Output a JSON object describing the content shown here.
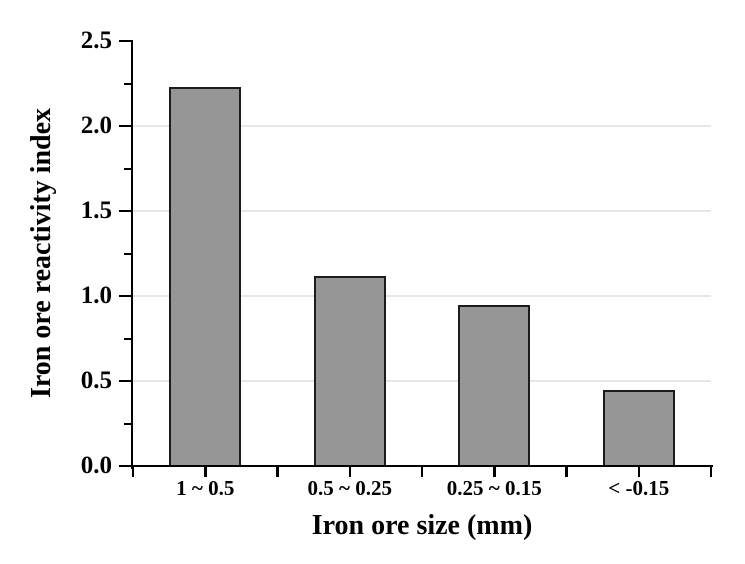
{
  "figure": {
    "background": "#ffffff"
  },
  "chart_data": {
    "type": "bar",
    "title": "",
    "xlabel": "Iron ore size (mm)",
    "ylabel": "Iron ore reactivity index",
    "categories": [
      "1 ~ 0.5",
      "0.5 ~ 0.25",
      "0.25 ~ 0.15",
      "< -0.15"
    ],
    "values": [
      2.23,
      1.12,
      0.95,
      0.45
    ],
    "ylim": [
      0,
      2.5
    ],
    "yticks": [
      {
        "value": 0.0,
        "label": "0.0"
      },
      {
        "value": 0.5,
        "label": "0.5"
      },
      {
        "value": 1.0,
        "label": "1.0"
      },
      {
        "value": 1.5,
        "label": "1.5"
      },
      {
        "value": 2.0,
        "label": "2.0"
      },
      {
        "value": 2.5,
        "label": "2.5"
      }
    ],
    "minor_yticks": [
      0.25,
      0.75,
      1.25,
      1.75,
      2.25
    ],
    "gridline_values": [
      0.5,
      1.0,
      1.5,
      2.0
    ],
    "grid": "horizontal-light",
    "legend": "none",
    "colors": {
      "bar_fill": "#969696",
      "bar_border": "#1c1c1c",
      "gridline": "#e7e7e7",
      "axis": "#000000",
      "text": "#000000"
    }
  }
}
